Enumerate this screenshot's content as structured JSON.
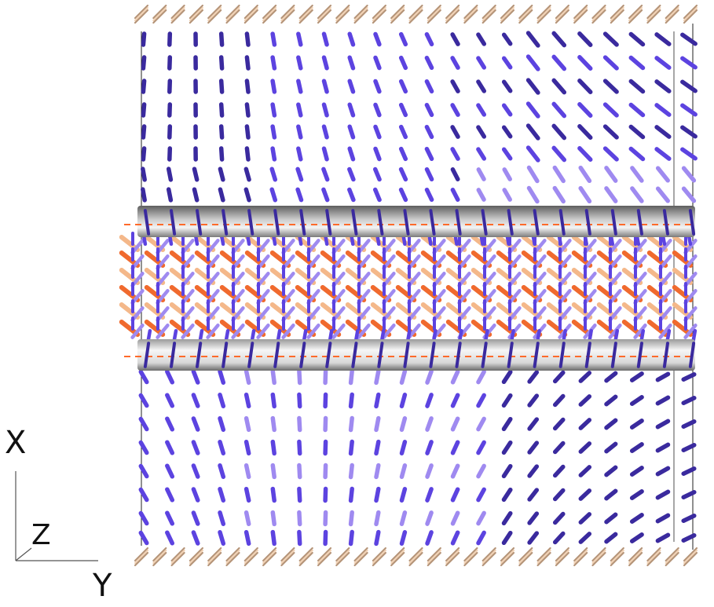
{
  "axes": {
    "x_label": "X",
    "y_label": "Y",
    "z_label": "Z"
  },
  "colors": {
    "background": "#ffffff",
    "frame": "#222222",
    "substrate_rods": "#f2d2b4",
    "substrate_rod_edge": "#b59478",
    "director_dark": "#3a2a9e",
    "director_mid": "#5c43e0",
    "director_light": "#9f8af0",
    "cylinder_light": "#f2f2f2",
    "cylinder_dark": "#6e6e6e",
    "cylinder_dashes": "#ff6a2a",
    "core_orange": "#f06a2e",
    "core_peach": "#f4b88a"
  }
}
